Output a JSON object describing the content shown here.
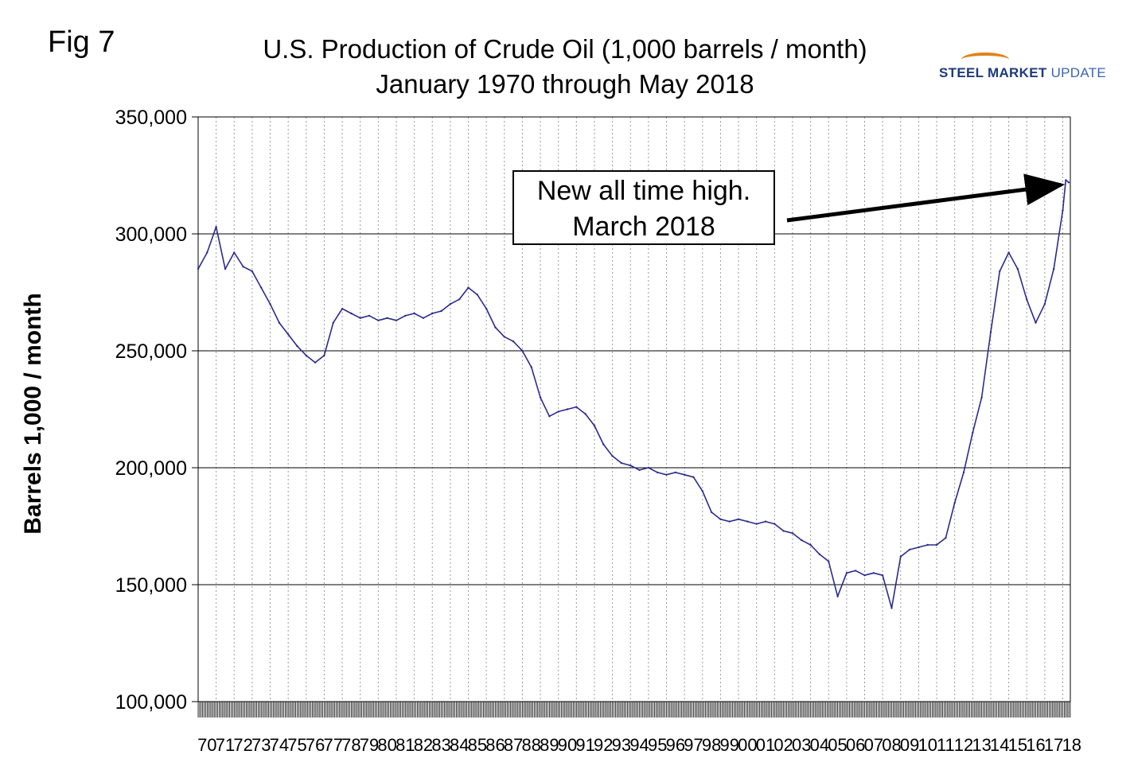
{
  "figure": {
    "fig_label": "Fig 7",
    "title_line1": "U.S. Production of Crude Oil (1,000 barrels / month)",
    "title_line2": "January 1970 through May 2018",
    "logo": {
      "part1": "STEEL",
      "part2": "MARKET",
      "part3": "UPDATE",
      "accent_color": "#e0821c",
      "brand_color": "#1f3a7a"
    },
    "annotation": {
      "line1": "New all time high.",
      "line2": "March 2018"
    }
  },
  "chart_data": {
    "type": "line",
    "title": "U.S. Production of Crude Oil (1,000 barrels / month)",
    "subtitle": "January 1970 through May 2018",
    "ylabel": "Barrels 1,000 / month",
    "xlabel": "",
    "ylim": [
      100000,
      350000
    ],
    "y_ticks": [
      100000,
      150000,
      200000,
      250000,
      300000,
      350000
    ],
    "y_tick_labels": [
      "100,000",
      "150,000",
      "200,000",
      "250,000",
      "300,000",
      "350,000"
    ],
    "x_range": [
      1970.0,
      2018.42
    ],
    "x_tick_labels": [
      "70",
      "71",
      "72",
      "73",
      "74",
      "75",
      "76",
      "77",
      "78",
      "79",
      "80",
      "81",
      "82",
      "83",
      "84",
      "85",
      "86",
      "87",
      "88",
      "89",
      "90",
      "91",
      "92",
      "93",
      "94",
      "95",
      "96",
      "97",
      "98",
      "99",
      "00",
      "01",
      "02",
      "03",
      "04",
      "05",
      "06",
      "07",
      "08",
      "09",
      "10",
      "11",
      "12",
      "13",
      "14",
      "15",
      "16",
      "17",
      "18"
    ],
    "grid": "horizontal solid, vertical dotted",
    "line_color": "#2b2b8c",
    "series": [
      {
        "x": [
          1970.0,
          1970.5,
          1971.0,
          1971.5,
          1972.0,
          1972.5,
          1973.0,
          1973.5,
          1974.0,
          1974.5,
          1975.0,
          1975.5,
          1976.0,
          1976.5,
          1977.0,
          1977.5,
          1978.0,
          1978.5,
          1979.0,
          1979.5,
          1980.0,
          1980.5,
          1981.0,
          1981.5,
          1982.0,
          1982.5,
          1983.0,
          1983.5,
          1984.0,
          1984.5,
          1985.0,
          1985.5,
          1986.0,
          1986.5,
          1987.0,
          1987.5,
          1988.0,
          1988.5,
          1989.0,
          1989.5,
          1990.0,
          1990.5,
          1991.0,
          1991.5,
          1992.0,
          1992.5,
          1993.0,
          1993.5,
          1994.0,
          1994.5,
          1995.0,
          1995.5,
          1996.0,
          1996.5,
          1997.0,
          1997.5,
          1998.0,
          1998.5,
          1999.0,
          1999.5,
          2000.0,
          2000.5,
          2001.0,
          2001.5,
          2002.0,
          2002.5,
          2003.0,
          2003.5,
          2004.0,
          2004.5,
          2005.0,
          2005.5,
          2006.0,
          2006.5,
          2007.0,
          2007.5,
          2008.0,
          2008.5,
          2009.0,
          2009.5,
          2010.0,
          2010.5,
          2011.0,
          2011.5,
          2012.0,
          2012.5,
          2013.0,
          2013.5,
          2014.0,
          2014.5,
          2015.0,
          2015.5,
          2016.0,
          2016.5,
          2017.0,
          2017.5,
          2018.0,
          2018.17,
          2018.33
        ],
        "values": [
          285000,
          292000,
          303000,
          285000,
          292000,
          286000,
          284000,
          277000,
          270000,
          262000,
          257000,
          252000,
          248000,
          245000,
          248000,
          262000,
          268000,
          266000,
          264000,
          265000,
          263000,
          264000,
          263000,
          265000,
          266000,
          264000,
          266000,
          267000,
          270000,
          272000,
          277000,
          274000,
          268000,
          260000,
          256000,
          254000,
          250000,
          243000,
          230000,
          222000,
          224000,
          225000,
          226000,
          223000,
          218000,
          210000,
          205000,
          202000,
          201000,
          199000,
          200000,
          198000,
          197000,
          198000,
          197000,
          196000,
          190000,
          181000,
          178000,
          177000,
          178000,
          177000,
          176000,
          177000,
          176000,
          173000,
          172000,
          169000,
          167000,
          163000,
          160000,
          145000,
          155000,
          156000,
          154000,
          155000,
          154000,
          140000,
          162000,
          165000,
          166000,
          167000,
          167000,
          170000,
          185000,
          198000,
          215000,
          230000,
          258000,
          284000,
          292000,
          285000,
          272000,
          262000,
          270000,
          285000,
          310000,
          323000,
          322000
        ]
      }
    ]
  }
}
